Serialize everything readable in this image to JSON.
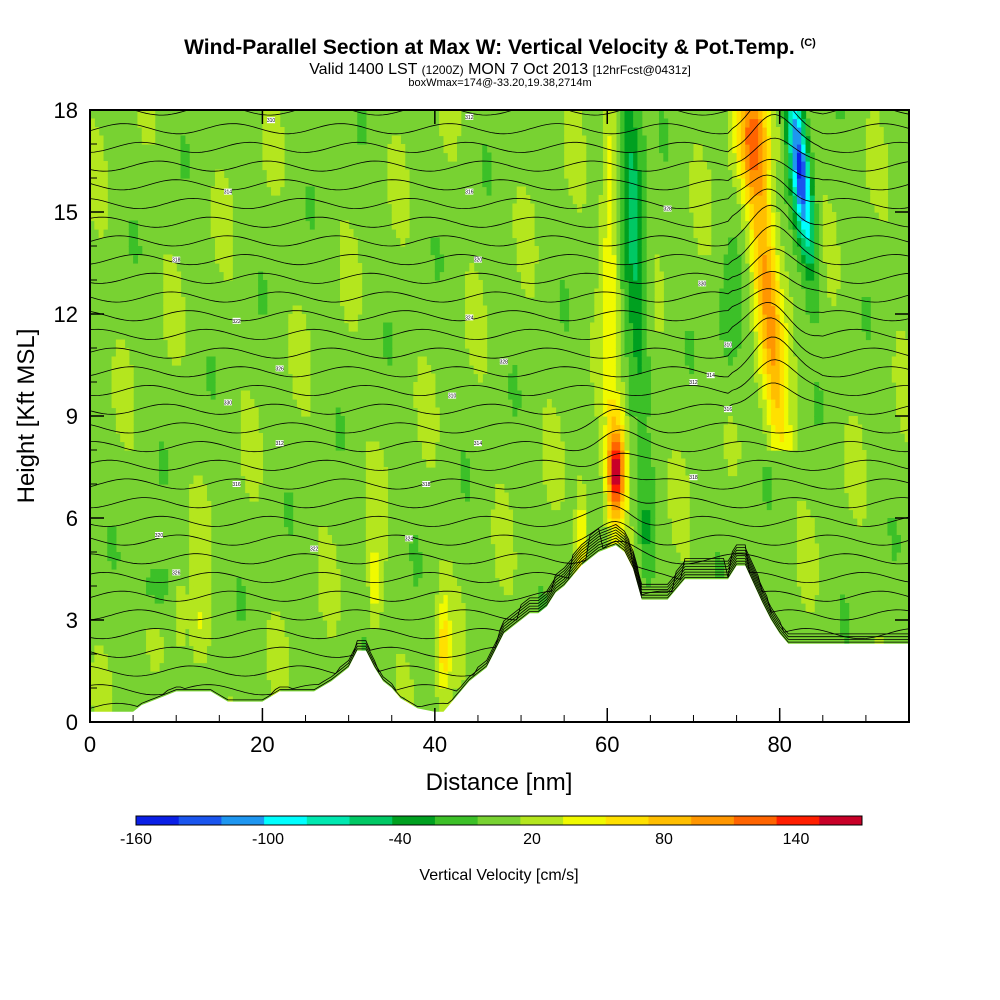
{
  "header": {
    "title": "Wind-Parallel Section at Max W: Vertical Velocity & Pot.Temp.",
    "copyright": "(C)",
    "valid_prefix": "Valid 1400 LST",
    "valid_utc": "(1200Z)",
    "valid_date": "MON 7 Oct 2013",
    "forecast": "[12hrFcst@0431z]",
    "box_info": "boxWmax=174@-33.20,19.38,2714m"
  },
  "chart_data": {
    "type": "heatmap",
    "title": "Wind-Parallel Section at Max W: Vertical Velocity & Pot.Temp.",
    "xlabel": "Distance [nm]",
    "ylabel": "Height [Kft MSL]",
    "xlim": [
      0,
      95
    ],
    "ylim": [
      0,
      18
    ],
    "xticks": [
      0,
      20,
      40,
      60,
      80
    ],
    "yticks": [
      0,
      3,
      6,
      9,
      12,
      15,
      18
    ],
    "colorbar": {
      "title": "Vertical Velocity [cm/s]",
      "min": -160,
      "max": 170,
      "step": 20,
      "tick_labels": [
        {
          "value": -160,
          "label": "-160"
        },
        {
          "value": -100,
          "label": "-100"
        },
        {
          "value": -40,
          "label": "-40"
        },
        {
          "value": 20,
          "label": "20"
        },
        {
          "value": 80,
          "label": "80"
        },
        {
          "value": 140,
          "label": "140"
        }
      ],
      "colors": [
        "#0a1fe6",
        "#1a55ee",
        "#1e96f0",
        "#00ffff",
        "#00e8b0",
        "#00c864",
        "#00a020",
        "#3cc028",
        "#78d232",
        "#b4e61e",
        "#f0fa00",
        "#ffe000",
        "#ffbe00",
        "#ff9600",
        "#ff6400",
        "#ff1e00",
        "#c80028"
      ]
    },
    "terrain_profile": {
      "distance_nm": [
        0,
        5,
        6,
        8,
        10,
        12,
        14,
        16,
        20,
        22,
        26,
        28,
        30,
        31,
        32,
        33,
        34,
        35,
        36,
        38,
        40,
        41,
        42,
        43,
        44,
        46,
        47,
        48,
        50,
        51,
        52,
        53,
        54,
        55,
        56,
        57,
        58,
        59,
        60,
        61,
        62,
        63,
        64,
        65,
        66,
        67,
        68,
        69,
        70,
        72,
        74,
        75,
        76,
        78,
        79,
        80,
        81,
        82,
        83,
        84,
        86,
        88,
        90,
        95
      ],
      "height_kft": [
        0.3,
        0.3,
        0.5,
        0.7,
        0.9,
        0.9,
        0.9,
        0.6,
        0.6,
        0.9,
        0.9,
        1.2,
        1.6,
        2.1,
        2.1,
        1.6,
        1.2,
        1.0,
        0.7,
        0.4,
        0.3,
        0.3,
        0.6,
        0.9,
        1.2,
        1.6,
        2.1,
        2.6,
        3.0,
        3.2,
        3.2,
        3.4,
        3.8,
        4.0,
        4.3,
        4.6,
        4.8,
        5.0,
        5.1,
        5.2,
        5.0,
        4.5,
        3.6,
        3.6,
        3.6,
        3.6,
        3.9,
        4.2,
        4.2,
        4.2,
        4.2,
        4.6,
        4.6,
        3.5,
        3.0,
        2.6,
        2.3,
        2.3,
        2.3,
        2.3,
        2.3,
        2.3,
        2.3,
        2.3
      ]
    },
    "vertical_velocity_features": [
      {
        "x_nm": 61,
        "z_kft": 7.4,
        "value_cm_s": 174
      },
      {
        "x_nm": 79,
        "z_kft": 12.5,
        "value_cm_s": 100
      },
      {
        "x_nm": 78,
        "z_kft": 17.2,
        "value_cm_s": 80
      },
      {
        "x_nm": 82,
        "z_kft": 16.0,
        "value_cm_s": -140
      },
      {
        "x_nm": 63,
        "z_kft": 15.0,
        "value_cm_s": -60
      },
      {
        "x_nm": 57,
        "z_kft": 5.5,
        "value_cm_s": 60
      },
      {
        "x_nm": 41,
        "z_kft": 2.0,
        "value_cm_s": 60
      },
      {
        "x_nm": 33,
        "z_kft": 4.0,
        "value_cm_s": 50
      },
      {
        "x_nm": 12.5,
        "z_kft": 2.8,
        "value_cm_s": 40
      }
    ],
    "theta_contour_labels": [
      "310",
      "312",
      "314",
      "316",
      "318",
      "320",
      "322",
      "324",
      "326",
      "328",
      "330"
    ]
  }
}
